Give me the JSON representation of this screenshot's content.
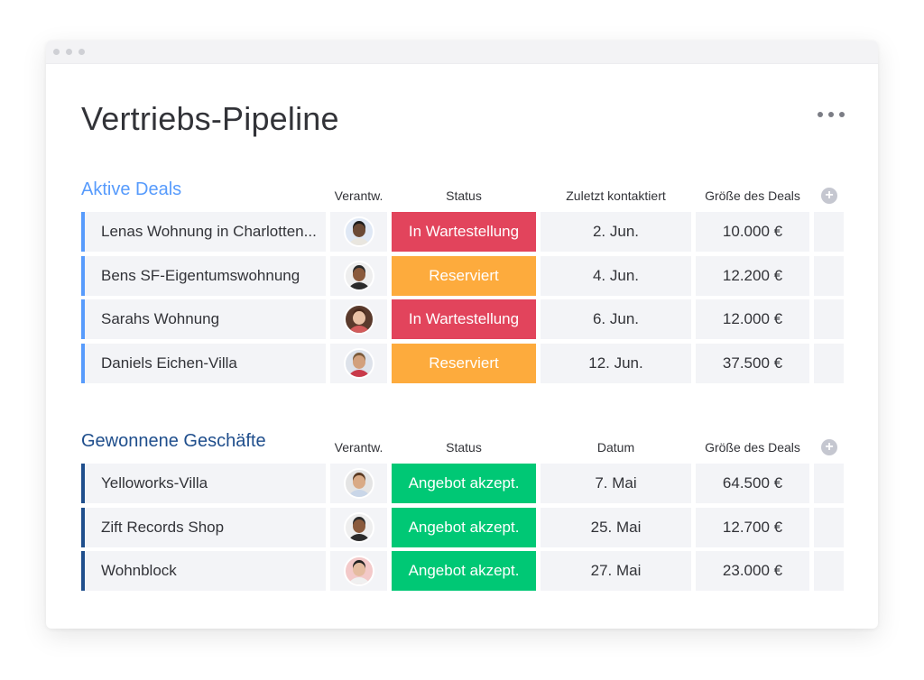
{
  "page": {
    "title": "Vertriebs-Pipeline",
    "more_icon": "more-horizontal-icon"
  },
  "colors": {
    "active_group": "#579bfc",
    "won_group": "#1f4e8c",
    "status_waiting": "#e2445c",
    "status_reserved": "#fdab3d",
    "status_accepted": "#00c875",
    "cell_bg": "#f3f4f7"
  },
  "groups": [
    {
      "title": "Aktive Deals",
      "color": "#579bfc",
      "columns": {
        "owner": "Verantw.",
        "status": "Status",
        "date": "Zuletzt kontaktiert",
        "size": "Größe des Deals"
      },
      "add_icon": "add-column-icon",
      "rows": [
        {
          "name": "Lenas Wohnung in Charlotten...",
          "owner_avatar": "avatar-woman-curly-icon",
          "status": "In Wartestellung",
          "status_color": "#e2445c",
          "date": "2. Jun.",
          "size": "10.000 €"
        },
        {
          "name": "Bens SF-Eigentumswohnung",
          "owner_avatar": "avatar-man-beard-icon",
          "status": "Reserviert",
          "status_color": "#fdab3d",
          "date": "4. Jun.",
          "size": "12.200 €"
        },
        {
          "name": "Sarahs Wohnung",
          "owner_avatar": "avatar-woman-glasses-icon",
          "status": "In Wartestellung",
          "status_color": "#e2445c",
          "date": "6. Jun.",
          "size": "12.000 €"
        },
        {
          "name": "Daniels Eichen-Villa",
          "owner_avatar": "avatar-man-bald-icon",
          "status": "Reserviert",
          "status_color": "#fdab3d",
          "date": "12. Jun.",
          "size": "37.500 €"
        }
      ]
    },
    {
      "title": "Gewonnene Geschäfte",
      "color": "#1f4e8c",
      "columns": {
        "owner": "Verantw.",
        "status": "Status",
        "date": "Datum",
        "size": "Größe des Deals"
      },
      "add_icon": "add-column-icon",
      "rows": [
        {
          "name": "Yelloworks-Villa",
          "owner_avatar": "avatar-man-smiling-icon",
          "status": "Angebot akzept.",
          "status_color": "#00c875",
          "date": "7. Mai",
          "size": "64.500 €"
        },
        {
          "name": "Zift Records Shop",
          "owner_avatar": "avatar-man-beard-icon",
          "status": "Angebot akzept.",
          "status_color": "#00c875",
          "date": "25. Mai",
          "size": "12.700 €"
        },
        {
          "name": "Wohnblock",
          "owner_avatar": "avatar-woman-dark-hair-icon",
          "status": "Angebot akzept.",
          "status_color": "#00c875",
          "date": "27. Mai",
          "size": "23.000 €"
        }
      ]
    }
  ]
}
